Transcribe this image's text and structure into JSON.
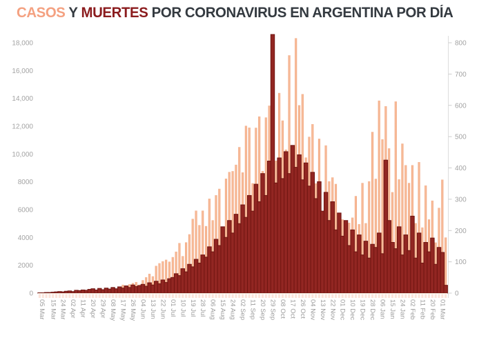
{
  "title": {
    "part1": "CASOS",
    "part2": " Y ",
    "part3": "MUERTES",
    "part4": " POR CORONAVIRUS EN ARGENTINA POR DÍA"
  },
  "colors": {
    "cases": "#f5a684",
    "cases_edge": "#ee9a72",
    "cases_center": "#fbc7a6",
    "deaths_fill": "#922622",
    "deaths_stroke": "#6f1511",
    "title_cases": "#f4a181",
    "title_deaths": "#8b1c1e",
    "title_text": "#343a40",
    "axis_text": "#a3a3a3",
    "axis_line": "#dddddd"
  },
  "chart_data": {
    "type": "bar",
    "title": "CASOS Y MUERTES POR CORONAVIRUS EN ARGENTINA POR DÍA",
    "grid": "off",
    "legend": "in-title (colored words)",
    "sampling_note": "daily bars; values estimated from chart, sampled every 3 days starting 05 Mar",
    "x_tick_labels": [
      "05 Mar",
      "15 Mar",
      "24 Mar",
      "02 Apr",
      "11 Apr",
      "20 Apr",
      "29 Apr",
      "08 May",
      "17 May",
      "26 May",
      "04 Jun",
      "13 Jun",
      "22 Jun",
      "01 Jul",
      "10 Jul",
      "19 Jul",
      "28 Jul",
      "06 Aug",
      "15 Aug",
      "24 Aug",
      "02 Sep",
      "11 Sep",
      "20 Sep",
      "29 Sep",
      "08 Oct",
      "17 Oct",
      "26 Oct",
      "04 Nov",
      "13 Nov",
      "22 Nov",
      "01 Dec",
      "10 Dec",
      "19 Dec",
      "28 Dec",
      "06 Jan",
      "15 Jan",
      "24 Jan",
      "02 Feb",
      "11 Feb",
      "20 Feb",
      "01 Mar"
    ],
    "left_axis": {
      "series": "casos",
      "range": [
        0,
        18000
      ],
      "ticks": [
        "0",
        "2000",
        "4000",
        "6000",
        "8000",
        "10,000",
        "12,000",
        "14,000",
        "16,000",
        "18,000"
      ]
    },
    "right_axis": {
      "series": "muertes",
      "range": [
        0,
        800
      ],
      "ticks": [
        "0",
        "100",
        "200",
        "300",
        "400",
        "500",
        "600",
        "700",
        "800"
      ]
    },
    "series": [
      {
        "name": "casos",
        "axis": "left",
        "color": "#f5a684",
        "values": [
          1,
          9,
          19,
          31,
          56,
          87,
          101,
          75,
          146,
          88,
          80,
          90,
          98,
          129,
          105,
          115,
          173,
          112,
          124,
          150,
          190,
          255,
          285,
          263,
          440,
          600,
          550,
          640,
          720,
          795,
          610,
          930,
          1140,
          1390,
          1210,
          1960,
          2150,
          2290,
          2400,
          2260,
          2590,
          2980,
          3600,
          2660,
          3650,
          4230,
          5340,
          5930,
          4890,
          5930,
          4820,
          6790,
          5240,
          7040,
          7500,
          4560,
          8230,
          8710,
          8770,
          9230,
          10500,
          8680,
          12030,
          11900,
          7900,
          11890,
          12700,
          8780,
          12630,
          13480,
          14000,
          9520,
          14390,
          12410,
          10320,
          17100,
          9060,
          18330,
          13510,
          14310,
          9750,
          11240,
          12150,
          7890,
          11100,
          5650,
          10620,
          8040,
          8320,
          7850,
          4160,
          5300,
          3310,
          5060,
          5430,
          6980,
          4960,
          7920,
          5030,
          8040,
          11590,
          8220,
          13840,
          11060,
          13440,
          10410,
          7260,
          13780,
          8180,
          10750,
          9200,
          7920,
          9200,
          5030,
          9420,
          4720,
          7740,
          5300,
          6650,
          3640,
          6130,
          8160,
          4000
        ]
      },
      {
        "name": "muertes",
        "axis": "right",
        "color": "#922622",
        "clipped_peak": "value 3351 (01 Oct backlog) clipped at plot top",
        "values": [
          1,
          1,
          2,
          2,
          3,
          4,
          5,
          4,
          6,
          7,
          5,
          9,
          8,
          10,
          9,
          12,
          14,
          10,
          15,
          11,
          16,
          13,
          18,
          14,
          20,
          16,
          23,
          18,
          26,
          21,
          24,
          28,
          22,
          33,
          26,
          38,
          30,
          42,
          34,
          46,
          50,
          62,
          56,
          78,
          68,
          92,
          84,
          108,
          96,
          122,
          115,
          148,
          132,
          172,
          152,
          212,
          178,
          232,
          192,
          252,
          222,
          282,
          242,
          312,
          262,
          348,
          292,
          382,
          312,
          422,
          3351,
          352,
          432,
          366,
          452,
          382,
          472,
          402,
          442,
          362,
          416,
          342,
          386,
          302,
          356,
          262,
          322,
          232,
          292,
          202,
          256,
          182,
          232,
          152,
          202,
          132,
          186,
          122,
          166,
          112,
          156,
          146,
          192,
          126,
          425,
          232,
          162,
          142,
          212,
          122,
          186,
          136,
          246,
          112,
          192,
          96,
          162,
          132,
          176,
          92,
          146,
          130,
          25
        ]
      }
    ]
  }
}
